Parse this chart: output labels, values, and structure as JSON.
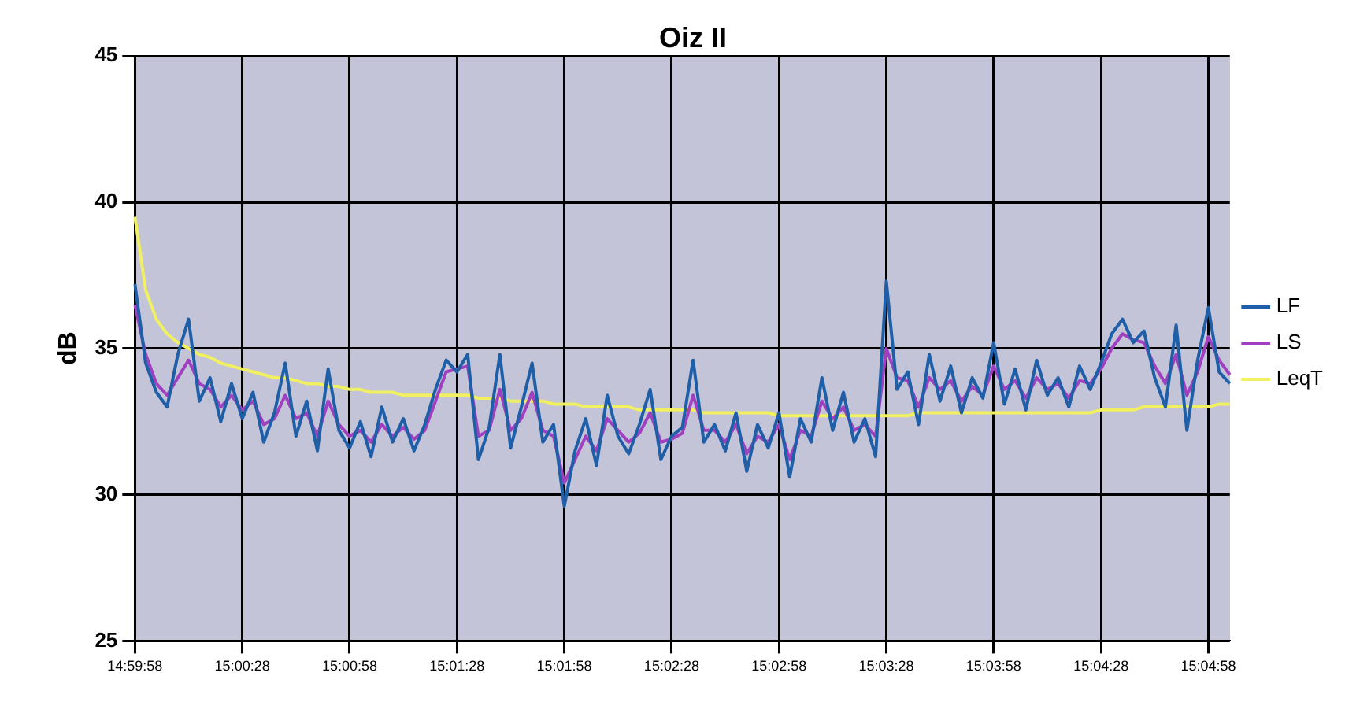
{
  "chart_data": {
    "type": "line",
    "title": "Oiz II",
    "ylabel": "dB",
    "categories": [
      "14:59:58",
      null,
      null,
      null,
      null,
      null,
      null,
      null,
      null,
      null,
      "15:00:28",
      null,
      null,
      null,
      null,
      null,
      null,
      null,
      null,
      null,
      "15:00:58",
      null,
      null,
      null,
      null,
      null,
      null,
      null,
      null,
      null,
      "15:01:28",
      null,
      null,
      null,
      null,
      null,
      null,
      null,
      null,
      null,
      "15:01:58",
      null,
      null,
      null,
      null,
      null,
      null,
      null,
      null,
      null,
      "15:02:28",
      null,
      null,
      null,
      null,
      null,
      null,
      null,
      null,
      null,
      "15:02:58",
      null,
      null,
      null,
      null,
      null,
      null,
      null,
      null,
      null,
      "15:03:28",
      null,
      null,
      null,
      null,
      null,
      null,
      null,
      null,
      null,
      "15:03:58",
      null,
      null,
      null,
      null,
      null,
      null,
      null,
      null,
      null,
      "15:04:28",
      null,
      null,
      null,
      null,
      null,
      null,
      null,
      null,
      null,
      "15:04:58",
      null,
      null
    ],
    "series": [
      {
        "name": "LF",
        "color": "#1f5fa8",
        "values": [
          37.2,
          34.5,
          33.5,
          33.0,
          34.8,
          36.0,
          33.2,
          34.0,
          32.5,
          33.8,
          32.6,
          33.5,
          31.8,
          32.8,
          34.5,
          32.0,
          33.2,
          31.5,
          34.3,
          32.2,
          31.6,
          32.5,
          31.3,
          33.0,
          31.8,
          32.6,
          31.5,
          32.4,
          33.6,
          34.6,
          34.2,
          34.8,
          31.2,
          32.3,
          34.8,
          31.6,
          33.0,
          34.5,
          31.8,
          32.4,
          29.6,
          31.5,
          32.6,
          31.0,
          33.4,
          32.0,
          31.4,
          32.4,
          33.6,
          31.2,
          32.0,
          32.3,
          34.6,
          31.8,
          32.4,
          31.5,
          32.8,
          30.8,
          32.4,
          31.6,
          32.8,
          30.6,
          32.6,
          31.8,
          34.0,
          32.2,
          33.5,
          31.8,
          32.6,
          31.3,
          37.3,
          33.6,
          34.2,
          32.4,
          34.8,
          33.2,
          34.4,
          32.8,
          34.0,
          33.3,
          35.2,
          33.1,
          34.3,
          32.9,
          34.6,
          33.4,
          34.0,
          33.0,
          34.4,
          33.6,
          34.5,
          35.5,
          36.0,
          35.2,
          35.6,
          34.0,
          33.0,
          35.8,
          32.2,
          34.6,
          36.4,
          34.2,
          33.8
        ]
      },
      {
        "name": "LS",
        "color": "#a040c0",
        "values": [
          36.5,
          34.8,
          33.8,
          33.4,
          34.0,
          34.6,
          33.8,
          33.6,
          33.0,
          33.4,
          32.9,
          33.2,
          32.4,
          32.6,
          33.4,
          32.6,
          32.8,
          32.0,
          33.2,
          32.4,
          32.0,
          32.2,
          31.8,
          32.4,
          32.0,
          32.3,
          31.9,
          32.2,
          33.2,
          34.2,
          34.3,
          34.4,
          32.0,
          32.2,
          33.6,
          32.2,
          32.6,
          33.5,
          32.2,
          32.0,
          30.4,
          31.2,
          32.0,
          31.5,
          32.6,
          32.2,
          31.8,
          32.1,
          32.8,
          31.8,
          31.9,
          32.1,
          33.4,
          32.2,
          32.2,
          31.8,
          32.4,
          31.4,
          32.0,
          31.8,
          32.4,
          31.2,
          32.2,
          32.0,
          33.2,
          32.6,
          33.0,
          32.2,
          32.4,
          32.0,
          35.0,
          34.0,
          33.9,
          33.0,
          34.0,
          33.6,
          33.9,
          33.2,
          33.7,
          33.4,
          34.4,
          33.6,
          33.9,
          33.3,
          34.0,
          33.6,
          33.8,
          33.3,
          33.9,
          33.8,
          34.3,
          35.0,
          35.5,
          35.3,
          35.2,
          34.4,
          33.8,
          34.8,
          33.4,
          34.2,
          35.4,
          34.6,
          34.1
        ]
      },
      {
        "name": "LeqT",
        "color": "#f0f060",
        "values": [
          39.5,
          37.0,
          36.0,
          35.5,
          35.2,
          35.0,
          34.8,
          34.7,
          34.5,
          34.4,
          34.3,
          34.2,
          34.1,
          34.0,
          34.0,
          33.9,
          33.8,
          33.8,
          33.7,
          33.7,
          33.6,
          33.6,
          33.5,
          33.5,
          33.5,
          33.4,
          33.4,
          33.4,
          33.4,
          33.4,
          33.4,
          33.4,
          33.3,
          33.3,
          33.3,
          33.2,
          33.2,
          33.2,
          33.2,
          33.1,
          33.1,
          33.1,
          33.0,
          33.0,
          33.0,
          33.0,
          33.0,
          32.9,
          32.9,
          32.9,
          32.9,
          32.9,
          32.9,
          32.8,
          32.8,
          32.8,
          32.8,
          32.8,
          32.8,
          32.8,
          32.7,
          32.7,
          32.7,
          32.7,
          32.7,
          32.7,
          32.7,
          32.7,
          32.7,
          32.7,
          32.7,
          32.7,
          32.7,
          32.8,
          32.8,
          32.8,
          32.8,
          32.8,
          32.8,
          32.8,
          32.8,
          32.8,
          32.8,
          32.8,
          32.8,
          32.8,
          32.8,
          32.8,
          32.8,
          32.8,
          32.9,
          32.9,
          32.9,
          32.9,
          33.0,
          33.0,
          33.0,
          33.0,
          33.0,
          33.0,
          33.0,
          33.1,
          33.1
        ]
      }
    ],
    "ylim": [
      25,
      45
    ],
    "yticks": [
      25,
      30,
      35,
      40,
      45
    ],
    "grid": true,
    "legend": "right",
    "marker": "none",
    "line_style": "solid"
  }
}
